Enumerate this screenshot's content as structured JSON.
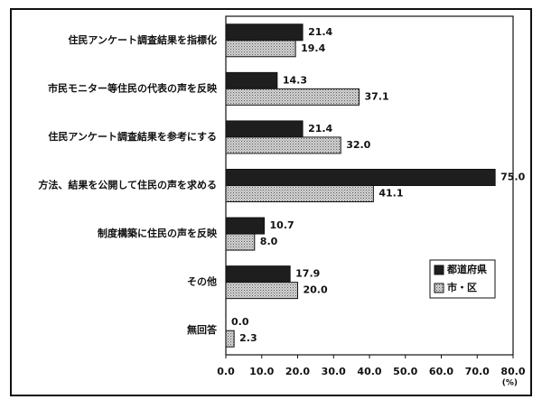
{
  "chart_data": {
    "type": "hbar",
    "categories": [
      "住民アンケート調査結果を指標化",
      "市民モニター等住民の代表の声を反映",
      "住民アンケート調査結果を参考にする",
      "方法、結果を公開して住民の声を求める",
      "制度構築に住民の声を反映",
      "その他",
      "無回答"
    ],
    "series": [
      {
        "name": "都道府県",
        "color": "#1e1e1e",
        "values": [
          21.4,
          14.3,
          21.4,
          75.0,
          10.7,
          17.9,
          0.0
        ],
        "value_labels": [
          "21.4",
          "14.3",
          "21.4",
          "75.0",
          "10.7",
          "17.9",
          "0.0"
        ]
      },
      {
        "name": "市・区",
        "color": "#d4d4d4",
        "values": [
          19.4,
          37.1,
          32.0,
          41.1,
          8.0,
          20.0,
          2.3
        ],
        "value_labels": [
          "19.4",
          "37.1",
          "32.0",
          "41.1",
          "8.0",
          "20.0",
          "2.3"
        ]
      }
    ],
    "xlim": [
      0,
      80
    ],
    "xticks": [
      {
        "value": 0,
        "label": "0.0"
      },
      {
        "value": 10,
        "label": "10.0"
      },
      {
        "value": 20,
        "label": "20.0"
      },
      {
        "value": 30,
        "label": "30.0"
      },
      {
        "value": 40,
        "label": "40.0"
      },
      {
        "value": 50,
        "label": "50.0"
      },
      {
        "value": 60,
        "label": "60.0"
      },
      {
        "value": 70,
        "label": "70.0"
      },
      {
        "value": 80,
        "label": "80.0"
      }
    ],
    "xlabel": "(%)",
    "legend": "lower-right"
  }
}
